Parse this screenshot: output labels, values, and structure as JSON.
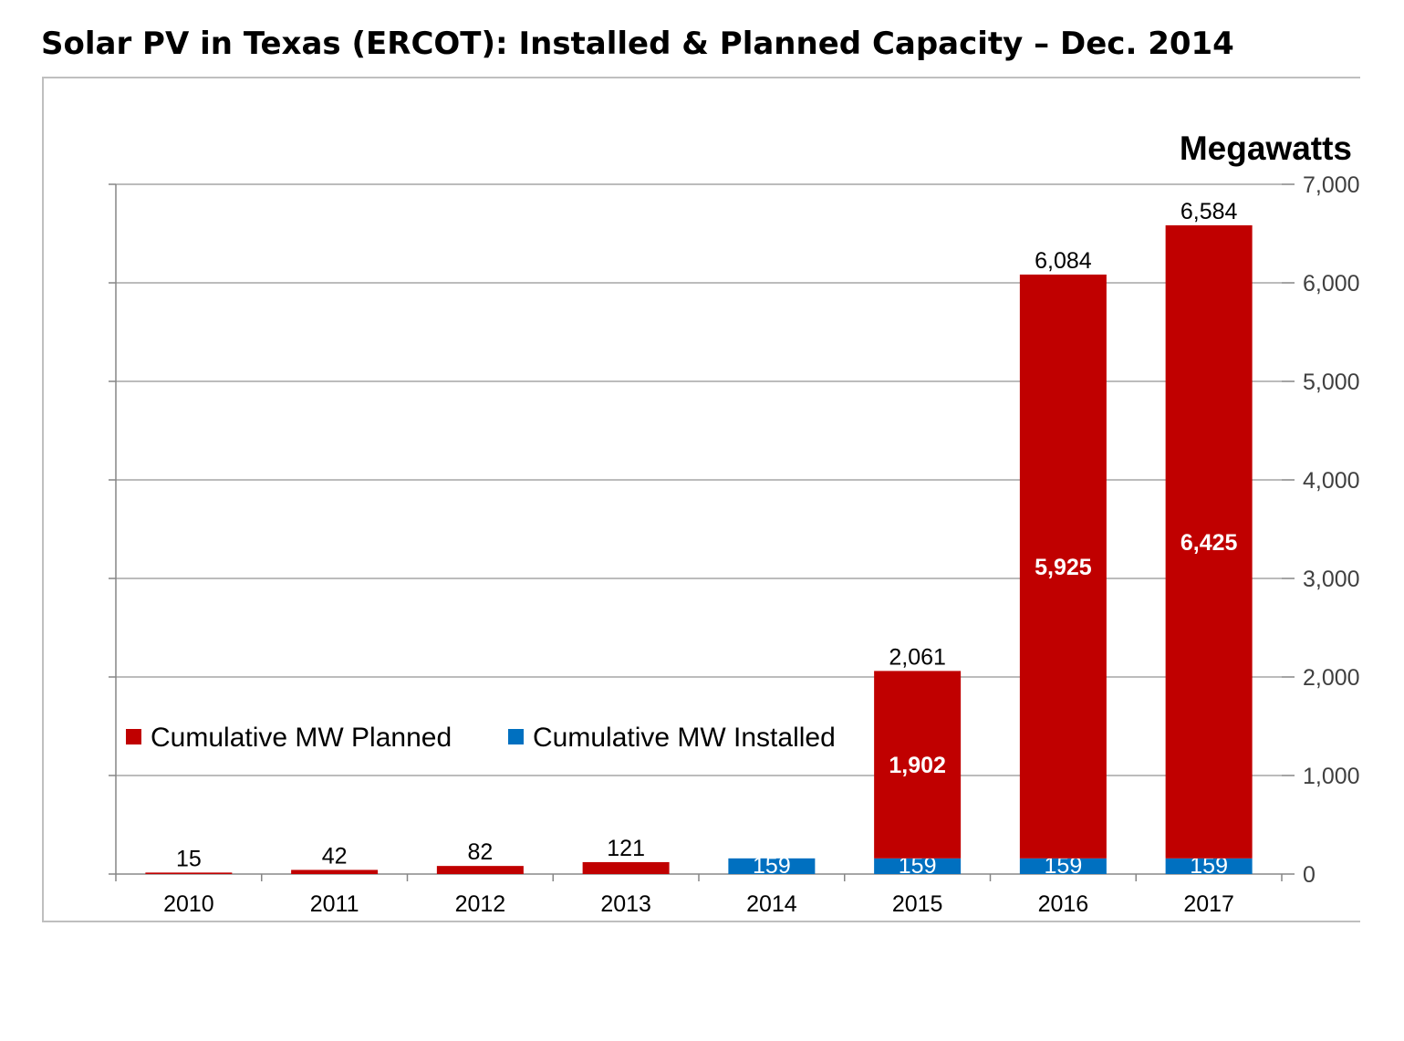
{
  "title": "Solar PV in Texas (ERCOT): Installed & Planned Capacity – Dec. 2014",
  "chart_data": {
    "type": "bar",
    "stacked": true,
    "ylabel": "Megawatts",
    "ylim": [
      0,
      7000
    ],
    "yticks": [
      0,
      1000,
      2000,
      3000,
      4000,
      5000,
      6000,
      7000
    ],
    "ytick_labels": [
      "0",
      "1,000",
      "2,000",
      "3,000",
      "4,000",
      "5,000",
      "6,000",
      "7,000"
    ],
    "categories": [
      "2010",
      "2011",
      "2012",
      "2013",
      "2014",
      "2015",
      "2016",
      "2017"
    ],
    "series": [
      {
        "name": "Cumulative MW Installed",
        "color": "#0070c0",
        "values": [
          0,
          0,
          0,
          0,
          159,
          159,
          159,
          159
        ],
        "labels": [
          "",
          "",
          "",
          "",
          "159",
          "159",
          "159",
          "159"
        ]
      },
      {
        "name": "Cumulative MW Planned",
        "color": "#c00000",
        "values": [
          15,
          42,
          82,
          121,
          0,
          1902,
          5925,
          6425
        ],
        "labels": [
          "",
          "",
          "",
          "",
          "",
          "1,902",
          "5,925",
          "6,425"
        ]
      }
    ],
    "totals": [
      15,
      42,
      82,
      121,
      159,
      2061,
      6084,
      6584
    ],
    "total_labels": [
      "15",
      "42",
      "82",
      "121",
      "",
      "2,061",
      "6,084",
      "6,584"
    ],
    "legend": [
      {
        "name": "Cumulative MW Planned",
        "color": "#c00000"
      },
      {
        "name": "Cumulative MW Installed",
        "color": "#0070c0"
      }
    ],
    "legend_position": "left-middle",
    "yaxis_side": "right",
    "grid": true
  }
}
